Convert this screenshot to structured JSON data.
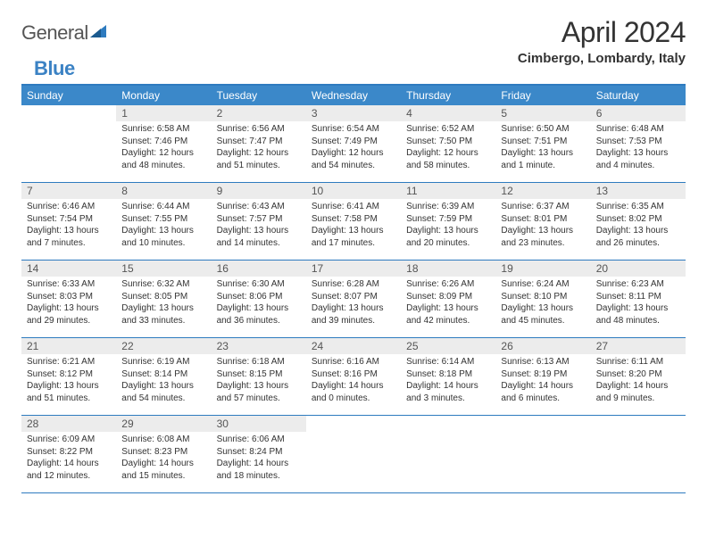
{
  "logo": {
    "text_gray": "General",
    "text_blue": "Blue"
  },
  "title": "April 2024",
  "location": "Cimbergo, Lombardy, Italy",
  "colors": {
    "header_bg": "#3b88c9",
    "border": "#2e7bbf",
    "daynum_bg": "#ececec",
    "text_dark": "#333333",
    "text_gray": "#555555"
  },
  "day_headers": [
    "Sunday",
    "Monday",
    "Tuesday",
    "Wednesday",
    "Thursday",
    "Friday",
    "Saturday"
  ],
  "weeks": [
    [
      null,
      {
        "n": "1",
        "sr": "6:58 AM",
        "ss": "7:46 PM",
        "dl": "12 hours and 48 minutes."
      },
      {
        "n": "2",
        "sr": "6:56 AM",
        "ss": "7:47 PM",
        "dl": "12 hours and 51 minutes."
      },
      {
        "n": "3",
        "sr": "6:54 AM",
        "ss": "7:49 PM",
        "dl": "12 hours and 54 minutes."
      },
      {
        "n": "4",
        "sr": "6:52 AM",
        "ss": "7:50 PM",
        "dl": "12 hours and 58 minutes."
      },
      {
        "n": "5",
        "sr": "6:50 AM",
        "ss": "7:51 PM",
        "dl": "13 hours and 1 minute."
      },
      {
        "n": "6",
        "sr": "6:48 AM",
        "ss": "7:53 PM",
        "dl": "13 hours and 4 minutes."
      }
    ],
    [
      {
        "n": "7",
        "sr": "6:46 AM",
        "ss": "7:54 PM",
        "dl": "13 hours and 7 minutes."
      },
      {
        "n": "8",
        "sr": "6:44 AM",
        "ss": "7:55 PM",
        "dl": "13 hours and 10 minutes."
      },
      {
        "n": "9",
        "sr": "6:43 AM",
        "ss": "7:57 PM",
        "dl": "13 hours and 14 minutes."
      },
      {
        "n": "10",
        "sr": "6:41 AM",
        "ss": "7:58 PM",
        "dl": "13 hours and 17 minutes."
      },
      {
        "n": "11",
        "sr": "6:39 AM",
        "ss": "7:59 PM",
        "dl": "13 hours and 20 minutes."
      },
      {
        "n": "12",
        "sr": "6:37 AM",
        "ss": "8:01 PM",
        "dl": "13 hours and 23 minutes."
      },
      {
        "n": "13",
        "sr": "6:35 AM",
        "ss": "8:02 PM",
        "dl": "13 hours and 26 minutes."
      }
    ],
    [
      {
        "n": "14",
        "sr": "6:33 AM",
        "ss": "8:03 PM",
        "dl": "13 hours and 29 minutes."
      },
      {
        "n": "15",
        "sr": "6:32 AM",
        "ss": "8:05 PM",
        "dl": "13 hours and 33 minutes."
      },
      {
        "n": "16",
        "sr": "6:30 AM",
        "ss": "8:06 PM",
        "dl": "13 hours and 36 minutes."
      },
      {
        "n": "17",
        "sr": "6:28 AM",
        "ss": "8:07 PM",
        "dl": "13 hours and 39 minutes."
      },
      {
        "n": "18",
        "sr": "6:26 AM",
        "ss": "8:09 PM",
        "dl": "13 hours and 42 minutes."
      },
      {
        "n": "19",
        "sr": "6:24 AM",
        "ss": "8:10 PM",
        "dl": "13 hours and 45 minutes."
      },
      {
        "n": "20",
        "sr": "6:23 AM",
        "ss": "8:11 PM",
        "dl": "13 hours and 48 minutes."
      }
    ],
    [
      {
        "n": "21",
        "sr": "6:21 AM",
        "ss": "8:12 PM",
        "dl": "13 hours and 51 minutes."
      },
      {
        "n": "22",
        "sr": "6:19 AM",
        "ss": "8:14 PM",
        "dl": "13 hours and 54 minutes."
      },
      {
        "n": "23",
        "sr": "6:18 AM",
        "ss": "8:15 PM",
        "dl": "13 hours and 57 minutes."
      },
      {
        "n": "24",
        "sr": "6:16 AM",
        "ss": "8:16 PM",
        "dl": "14 hours and 0 minutes."
      },
      {
        "n": "25",
        "sr": "6:14 AM",
        "ss": "8:18 PM",
        "dl": "14 hours and 3 minutes."
      },
      {
        "n": "26",
        "sr": "6:13 AM",
        "ss": "8:19 PM",
        "dl": "14 hours and 6 minutes."
      },
      {
        "n": "27",
        "sr": "6:11 AM",
        "ss": "8:20 PM",
        "dl": "14 hours and 9 minutes."
      }
    ],
    [
      {
        "n": "28",
        "sr": "6:09 AM",
        "ss": "8:22 PM",
        "dl": "14 hours and 12 minutes."
      },
      {
        "n": "29",
        "sr": "6:08 AM",
        "ss": "8:23 PM",
        "dl": "14 hours and 15 minutes."
      },
      {
        "n": "30",
        "sr": "6:06 AM",
        "ss": "8:24 PM",
        "dl": "14 hours and 18 minutes."
      },
      null,
      null,
      null,
      null
    ]
  ],
  "labels": {
    "sunrise": "Sunrise:",
    "sunset": "Sunset:",
    "daylight": "Daylight:"
  }
}
